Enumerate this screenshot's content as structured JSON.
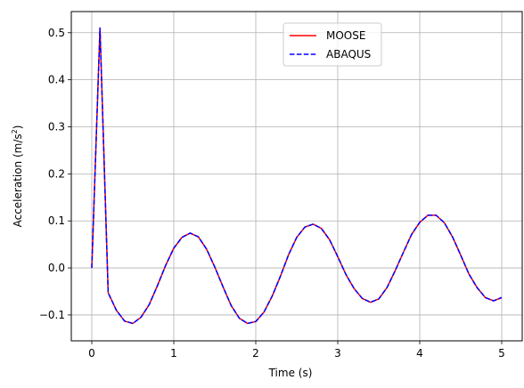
{
  "chart_data": {
    "type": "line",
    "xlabel": "Time (s)",
    "ylabel": "Acceleration (m/s²)",
    "ylabel_base": "Acceleration (m/s",
    "ylabel_sup": "2",
    "ylabel_close": ")",
    "xlim": [
      -0.25,
      5.25
    ],
    "ylim": [
      -0.155,
      0.545
    ],
    "grid": true,
    "legend_position": "upper center",
    "x_ticks": [
      0,
      1,
      2,
      3,
      4,
      5
    ],
    "x_tick_labels": [
      "0",
      "1",
      "2",
      "3",
      "4",
      "5"
    ],
    "y_ticks": [
      -0.1,
      0.0,
      0.1,
      0.2,
      0.3,
      0.4,
      0.5
    ],
    "y_tick_labels": [
      "−0.1",
      "0.0",
      "0.1",
      "0.2",
      "0.3",
      "0.4",
      "0.5"
    ],
    "x": [
      0,
      0.1,
      0.2,
      0.3,
      0.4,
      0.5,
      0.6,
      0.7,
      0.8,
      0.9,
      1.0,
      1.1,
      1.2,
      1.3,
      1.4,
      1.5,
      1.6,
      1.7,
      1.8,
      1.9,
      2.0,
      2.1,
      2.2,
      2.3,
      2.4,
      2.5,
      2.6,
      2.7,
      2.8,
      2.9,
      3.0,
      3.1,
      3.2,
      3.3,
      3.4,
      3.5,
      3.6,
      3.7,
      3.8,
      3.9,
      4.0,
      4.1,
      4.2,
      4.3,
      4.4,
      4.5,
      4.6,
      4.7,
      4.8,
      4.9,
      5.0
    ],
    "series": [
      {
        "name": "MOOSE",
        "color": "#ff0000",
        "style": "solid",
        "values": [
          0.0,
          0.51,
          -0.053,
          -0.09,
          -0.113,
          -0.118,
          -0.105,
          -0.078,
          -0.038,
          0.005,
          0.042,
          0.065,
          0.074,
          0.066,
          0.04,
          0.002,
          -0.04,
          -0.08,
          -0.107,
          -0.118,
          -0.114,
          -0.094,
          -0.06,
          -0.018,
          0.028,
          0.065,
          0.087,
          0.093,
          0.084,
          0.06,
          0.024,
          -0.014,
          -0.044,
          -0.065,
          -0.073,
          -0.066,
          -0.042,
          -0.006,
          0.033,
          0.071,
          0.097,
          0.112,
          0.112,
          0.096,
          0.066,
          0.027,
          -0.013,
          -0.042,
          -0.063,
          -0.07,
          -0.063
        ]
      },
      {
        "name": "ABAQUS",
        "color": "#0000ff",
        "style": "dashed",
        "values": [
          0.0,
          0.51,
          -0.053,
          -0.09,
          -0.113,
          -0.118,
          -0.105,
          -0.078,
          -0.038,
          0.005,
          0.042,
          0.065,
          0.074,
          0.066,
          0.04,
          0.002,
          -0.04,
          -0.08,
          -0.107,
          -0.118,
          -0.114,
          -0.094,
          -0.06,
          -0.018,
          0.028,
          0.065,
          0.087,
          0.093,
          0.084,
          0.06,
          0.024,
          -0.014,
          -0.044,
          -0.065,
          -0.073,
          -0.066,
          -0.042,
          -0.006,
          0.033,
          0.071,
          0.097,
          0.112,
          0.112,
          0.096,
          0.066,
          0.027,
          -0.013,
          -0.042,
          -0.063,
          -0.07,
          -0.063
        ]
      }
    ]
  }
}
